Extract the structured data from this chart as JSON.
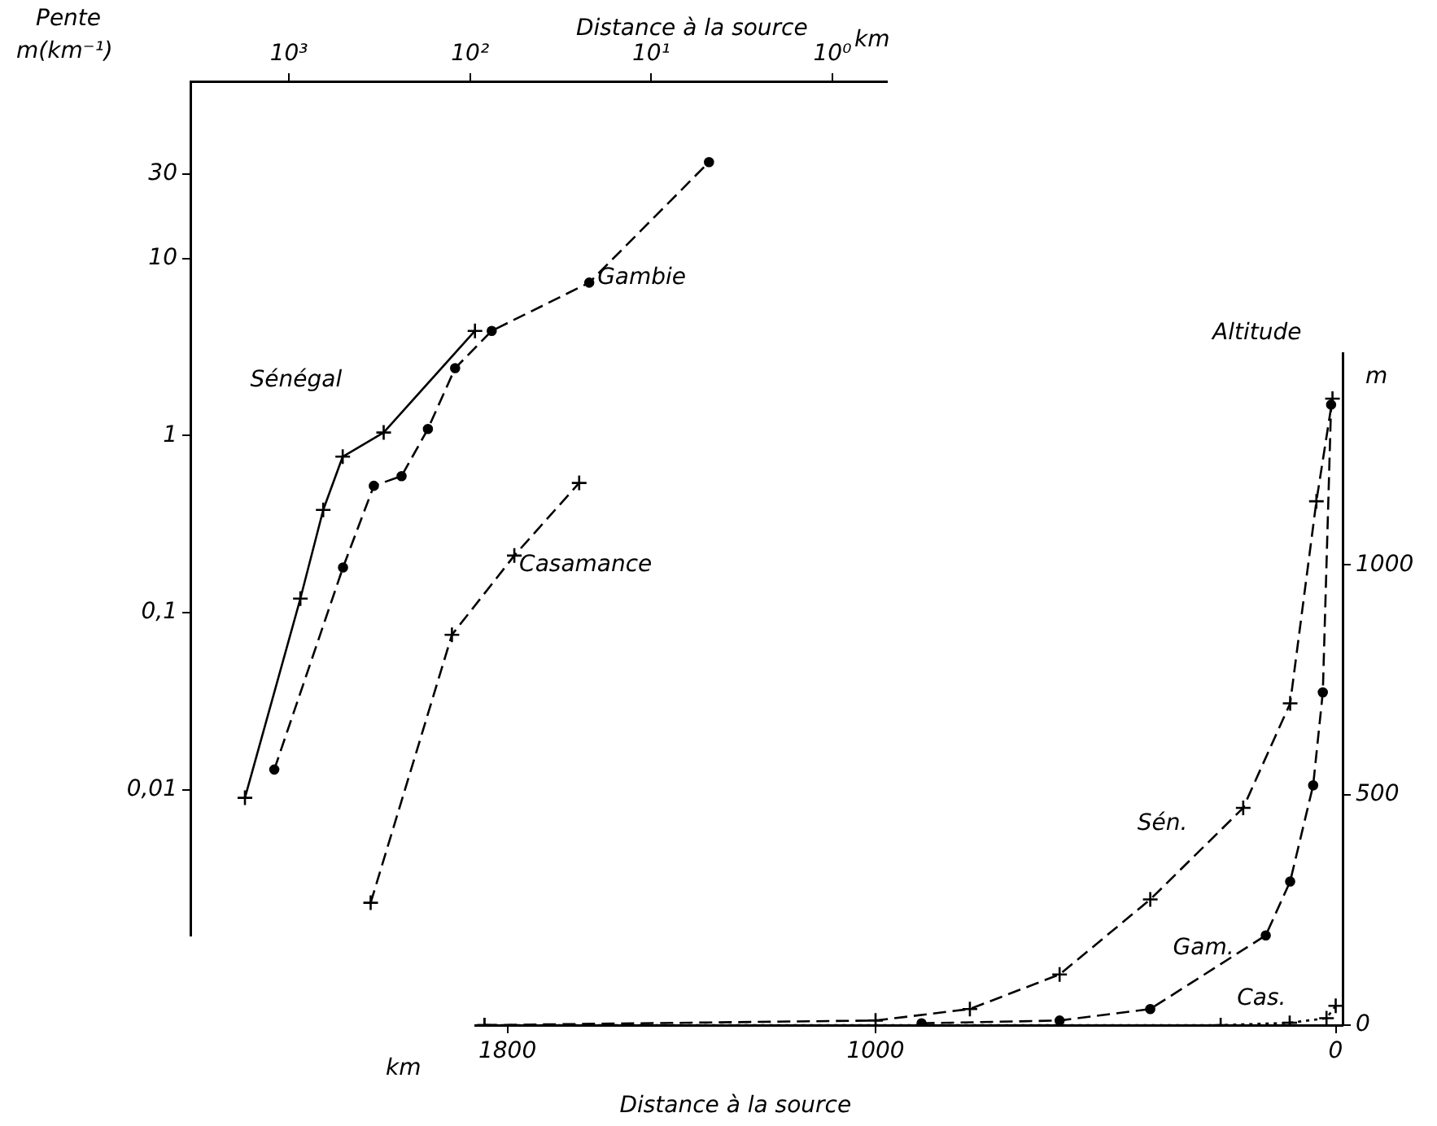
{
  "chart_data": [
    {
      "type": "line",
      "xlabel": "Distance à la source",
      "ylabel": "Pente m(km⁻¹)",
      "annotations": [
        "km"
      ],
      "log": "xy",
      "grid": false,
      "legend": false,
      "xlim": [
        3500,
        0.5
      ],
      "xticks": [
        {
          "value": 1000,
          "label": "10³"
        },
        {
          "value": 100,
          "label": "10²"
        },
        {
          "value": 10,
          "label": "10¹"
        },
        {
          "value": 1,
          "label": "10⁰"
        }
      ],
      "ylim": [
        0.0015,
        100
      ],
      "yticks": [
        30,
        10,
        1,
        {
          "value": 0.1,
          "label": "0,1"
        },
        {
          "value": 0.01,
          "label": "0,01"
        }
      ],
      "series": [
        {
          "name": "Sénégal",
          "color": "#000000",
          "marker": "cross",
          "line_style": "solid",
          "x": [
            1750,
            865,
            647,
            505,
            300,
            94
          ],
          "values": [
            0.009,
            0.12,
            0.38,
            0.76,
            1.04,
            3.9
          ]
        },
        {
          "name": "Gambie",
          "color": "#000000",
          "marker": "circle",
          "line_style": "dashed",
          "x": [
            1205,
            503,
            340,
            239,
            171,
            121,
            76,
            22,
            4.8
          ],
          "values": [
            0.013,
            0.18,
            0.52,
            0.59,
            1.09,
            2.4,
            3.9,
            7.3,
            35
          ]
        },
        {
          "name": "Casamance",
          "color": "#000000",
          "marker": "cross",
          "line_style": "dashed",
          "x": [
            354,
            126,
            57,
            25
          ],
          "values": [
            0.0023,
            0.075,
            0.21,
            0.54
          ]
        }
      ]
    },
    {
      "type": "line",
      "xlabel": "Distance à la source",
      "ylabel": "Altitude",
      "annotations": [
        "km",
        "m"
      ],
      "grid": false,
      "legend": false,
      "xlim": [
        1870,
        -15
      ],
      "xticks": [
        1800,
        1000,
        0
      ],
      "ylim": [
        0,
        1460
      ],
      "yticks": [
        0,
        500,
        1000
      ],
      "series": [
        {
          "name": "Sén.",
          "color": "#000000",
          "marker": "cross",
          "line_style": "dashed",
          "x": [
            1850,
            1000,
            795,
            600,
            403,
            201,
            99,
            42,
            7
          ],
          "values": [
            0,
            10,
            35,
            110,
            273,
            472,
            699,
            1138,
            1361
          ]
        },
        {
          "name": "Gam.",
          "color": "#000000",
          "marker": "circle",
          "line_style": "dashed",
          "x": [
            900,
            600,
            403,
            152,
            99,
            49,
            28,
            10
          ],
          "values": [
            4,
            10,
            35,
            195,
            312,
            521,
            723,
            1348
          ]
        },
        {
          "name": "Cas.",
          "color": "#000000",
          "marker": "cross",
          "line_style": "dotted",
          "x": [
            1850,
            250,
            100,
            20,
            0
          ],
          "values": [
            0,
            0,
            5,
            15,
            42
          ]
        }
      ]
    }
  ]
}
